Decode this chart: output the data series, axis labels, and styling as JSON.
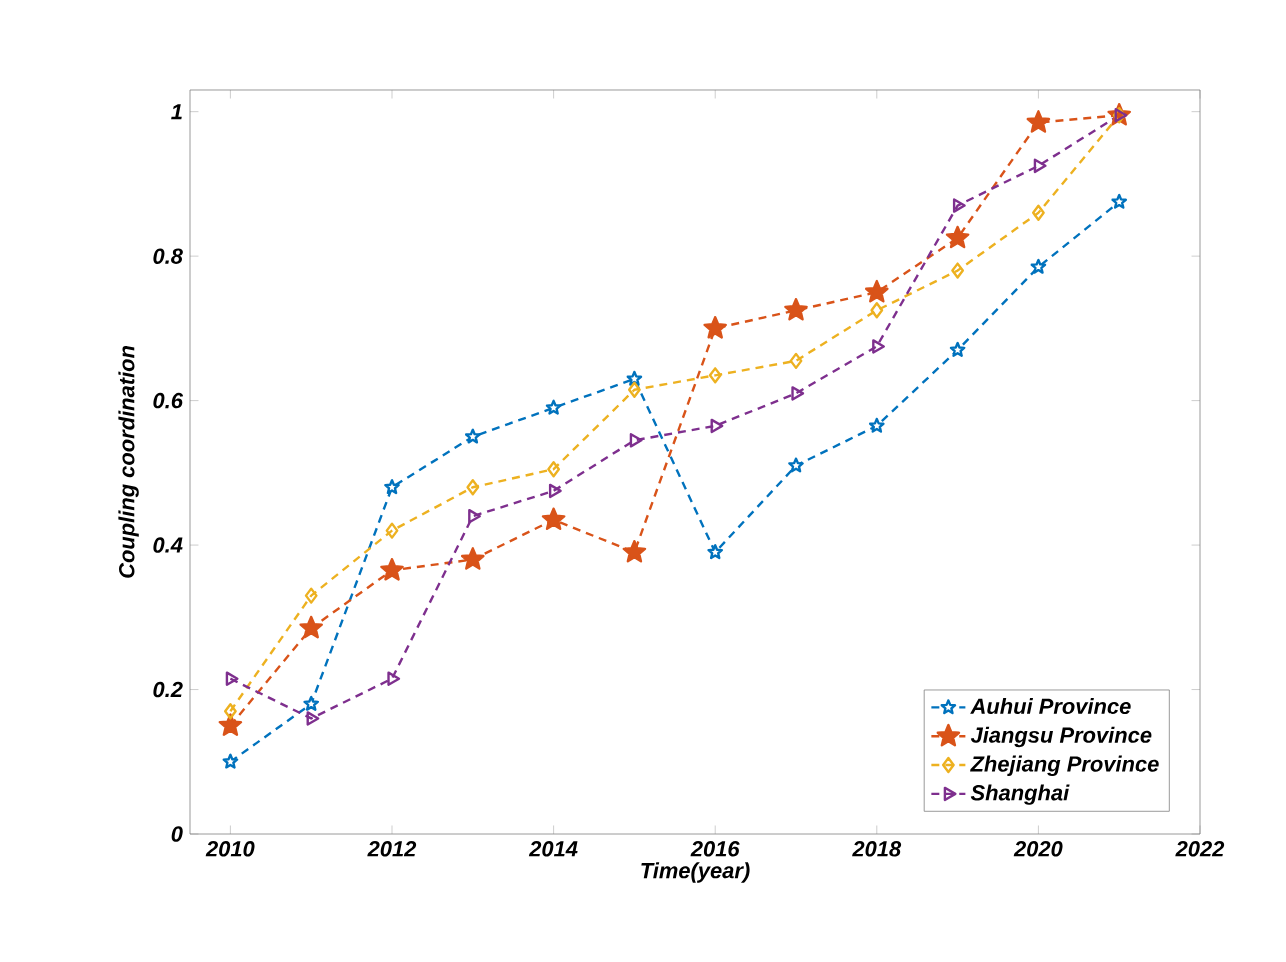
{
  "chart_data": {
    "type": "line",
    "xlabel": "Time(year)",
    "ylabel": "Coupling coordination",
    "x": [
      2010,
      2011,
      2012,
      2013,
      2014,
      2015,
      2016,
      2017,
      2018,
      2019,
      2020,
      2021
    ],
    "series": [
      {
        "name": "Auhui Province",
        "color": "#0072bd",
        "marker": "star",
        "values": [
          0.1,
          0.18,
          0.48,
          0.55,
          0.59,
          0.63,
          0.39,
          0.51,
          0.565,
          0.67,
          0.785,
          0.875
        ]
      },
      {
        "name": "Jiangsu Province",
        "color": "#d95319",
        "marker": "star",
        "values": [
          0.15,
          0.285,
          0.365,
          0.38,
          0.435,
          0.39,
          0.7,
          0.725,
          0.75,
          0.825,
          0.985,
          0.995
        ]
      },
      {
        "name": "Zhejiang Province",
        "color": "#edb120",
        "marker": "diamond",
        "values": [
          0.17,
          0.33,
          0.42,
          0.48,
          0.505,
          0.615,
          0.635,
          0.655,
          0.725,
          0.78,
          0.86,
          0.995
        ]
      },
      {
        "name": "Shanghai",
        "color": "#7e2f8e",
        "marker": "triangle",
        "values": [
          0.215,
          0.16,
          0.215,
          0.44,
          0.475,
          0.545,
          0.565,
          0.61,
          0.675,
          0.87,
          0.925,
          0.995
        ]
      }
    ],
    "xlim": [
      2009.5,
      2022
    ],
    "ylim": [
      0,
      1.03
    ],
    "xticks": [
      2010,
      2012,
      2014,
      2016,
      2018,
      2020,
      2022
    ],
    "yticks": [
      0,
      0.2,
      0.4,
      0.6,
      0.8,
      1
    ],
    "legend": "bottom right",
    "line_style": "dashed",
    "grid": false
  }
}
